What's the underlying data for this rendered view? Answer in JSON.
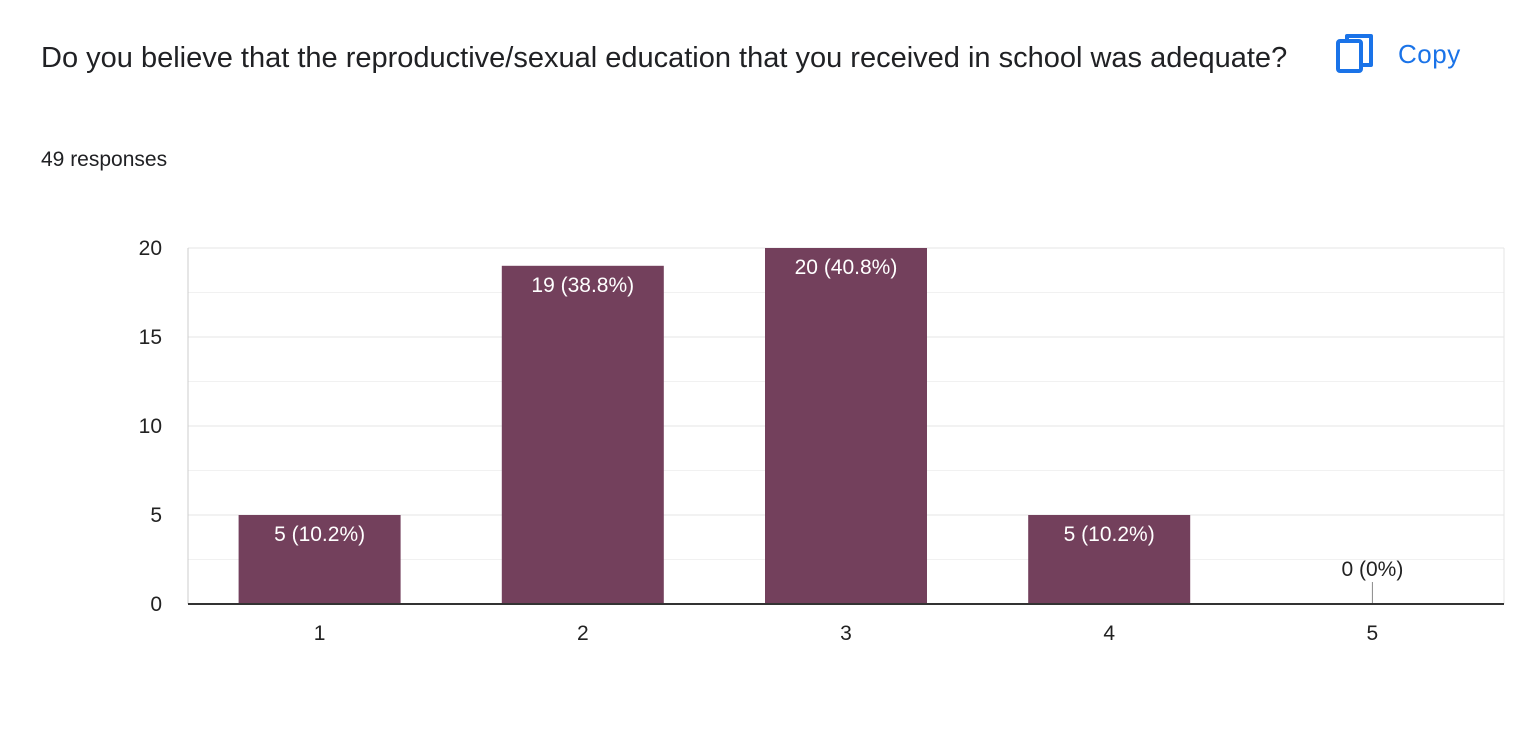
{
  "question": "Do you believe that the reproductive/sexual education that you received in school was adequate?",
  "responses_text": "49 responses",
  "copy_button": {
    "label": "Copy",
    "icon": "copy-icon"
  },
  "colors": {
    "bar": "#73405C",
    "accent": "#1a73e8",
    "grid": "#e5e5e5",
    "axis": "#333333"
  },
  "chart_data": {
    "type": "bar",
    "categories": [
      "1",
      "2",
      "3",
      "4",
      "5"
    ],
    "values": [
      5,
      19,
      20,
      5,
      0
    ],
    "data_labels": [
      "5 (10.2%)",
      "19 (38.8%)",
      "20 (40.8%)",
      "5 (10.2%)",
      "0 (0%)"
    ],
    "ylim": [
      0,
      20
    ],
    "yticks": [
      0,
      5,
      10,
      15,
      20
    ],
    "minor_gridlines": true,
    "title": "",
    "xlabel": "",
    "ylabel": ""
  }
}
